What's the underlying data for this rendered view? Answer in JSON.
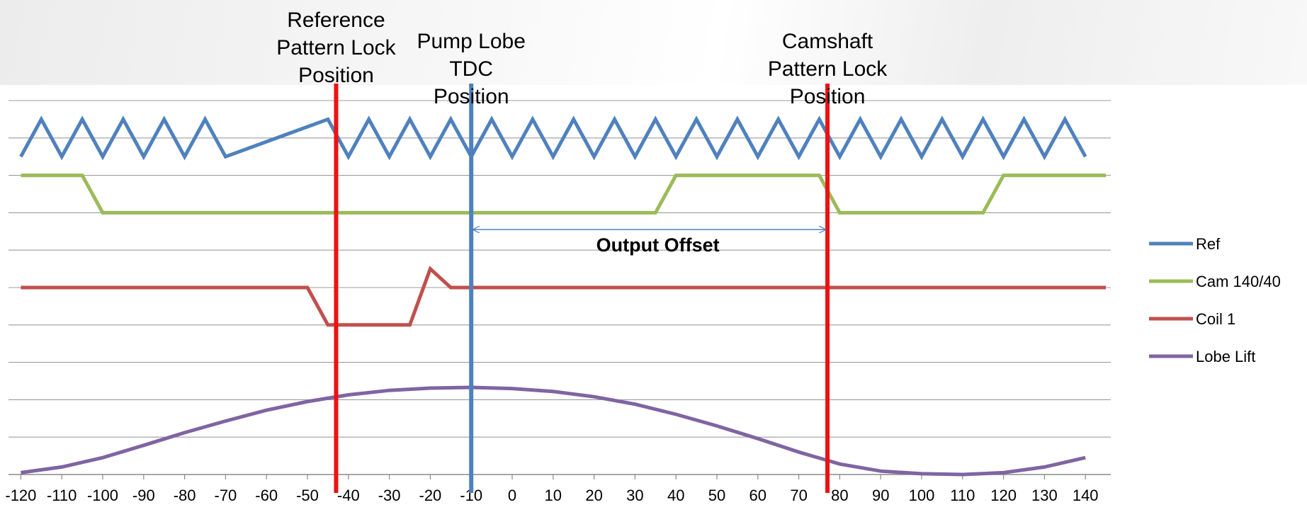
{
  "chart_data": {
    "type": "line",
    "title": "",
    "xlabel": "",
    "ylabel": "",
    "xlim": [
      -123,
      147
    ],
    "x_ticks": [
      -120,
      -110,
      -100,
      -90,
      -80,
      -70,
      -60,
      -50,
      -40,
      -30,
      -20,
      -10,
      0,
      10,
      20,
      30,
      40,
      50,
      60,
      70,
      80,
      90,
      100,
      110,
      120,
      130,
      140
    ],
    "x_tick_labels": [
      "-120",
      "-110",
      "-100",
      "-90",
      "-80",
      "-70",
      "-60",
      "-50",
      "-40",
      "-30",
      "-20",
      "-10",
      "0",
      "10",
      "20",
      "30",
      "40",
      "50",
      "60",
      "70",
      "80",
      "90",
      "100",
      "110",
      "120",
      "130",
      "140"
    ],
    "gridlines": 10,
    "series": [
      {
        "name": "Ref",
        "color": "#4f81bd",
        "x": [
          -120,
          -115,
          -110,
          -105,
          -100,
          -95,
          -90,
          -85,
          -80,
          -75,
          -70,
          -45,
          -40,
          -35,
          -30,
          -25,
          -20,
          -15,
          -10,
          -5,
          0,
          5,
          10,
          15,
          20,
          25,
          30,
          35,
          40,
          45,
          50,
          55,
          60,
          65,
          70,
          75,
          80,
          85,
          90,
          95,
          100,
          105,
          110,
          115,
          120,
          125,
          130,
          135,
          140
        ],
        "y": [
          8.5,
          9.5,
          8.5,
          9.5,
          8.5,
          9.5,
          8.5,
          9.5,
          8.5,
          9.5,
          8.5,
          9.5,
          8.5,
          9.5,
          8.5,
          9.5,
          8.5,
          9.5,
          8.5,
          9.5,
          8.5,
          9.5,
          8.5,
          9.5,
          8.5,
          9.5,
          8.5,
          9.5,
          8.5,
          9.5,
          8.5,
          9.5,
          8.5,
          9.5,
          8.5,
          9.5,
          8.5,
          9.5,
          8.5,
          9.5,
          8.5,
          9.5,
          8.5,
          9.5,
          8.5,
          9.5,
          8.5,
          9.5,
          8.5
        ]
      },
      {
        "name": "Cam 140/40",
        "color": "#9bbb59",
        "x": [
          -120,
          -105,
          -100,
          35,
          40,
          75,
          80,
          115,
          120,
          145
        ],
        "y": [
          8,
          8,
          7,
          7,
          8,
          8,
          7,
          7,
          8,
          8
        ]
      },
      {
        "name": "Coil 1",
        "color": "#c0504d",
        "x": [
          -120,
          -50,
          -45,
          -25,
          -20,
          -15,
          145
        ],
        "y": [
          5,
          5,
          4,
          4,
          5.5,
          5,
          5
        ]
      },
      {
        "name": "Lobe Lift",
        "color": "#8064a2",
        "x": [
          -120,
          -110,
          -100,
          -90,
          -80,
          -70,
          -60,
          -50,
          -40,
          -30,
          -20,
          -10,
          0,
          10,
          20,
          30,
          40,
          50,
          60,
          70,
          80,
          90,
          100,
          110,
          120,
          130,
          140
        ],
        "y": [
          0.05,
          0.2,
          0.45,
          0.78,
          1.12,
          1.43,
          1.72,
          1.95,
          2.13,
          2.25,
          2.31,
          2.33,
          2.3,
          2.22,
          2.08,
          1.88,
          1.61,
          1.3,
          0.96,
          0.6,
          0.28,
          0.09,
          0.02,
          0.0,
          0.05,
          0.2,
          0.45
        ]
      }
    ],
    "markers": [
      {
        "name": "reference-lock-line",
        "x": -43,
        "color": "#ee1111",
        "label_lines": [
          "Reference",
          "Pattern Lock",
          "Position"
        ]
      },
      {
        "name": "pump-tdc-line",
        "x": -10,
        "color": "#4f81bd",
        "label_lines": [
          "Pump Lobe",
          "TDC",
          "Position"
        ]
      },
      {
        "name": "camshaft-lock-line",
        "x": 77,
        "color": "#ee1111",
        "label_lines": [
          "Camshaft",
          "Pattern Lock",
          "Position"
        ]
      }
    ],
    "annotation": {
      "text": "Output Offset",
      "x_from": -10,
      "x_to": 77,
      "y": 6.55
    },
    "legend": {
      "position": "right",
      "entries": [
        "Ref",
        "Cam 140/40",
        "Coil 1",
        "Lobe Lift"
      ]
    }
  }
}
